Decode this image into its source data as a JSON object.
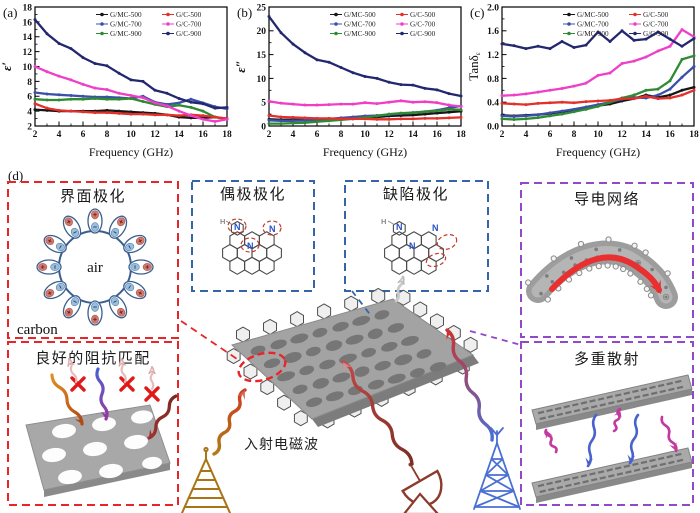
{
  "figure": {
    "panel_labels": {
      "a": "(a)",
      "b": "(b)",
      "c": "(c)",
      "d": "(d)"
    }
  },
  "chart_data": [
    {
      "type": "line",
      "panel_label": "(a)",
      "ylabel": "ε′",
      "ylabel_italic": true,
      "xlabel": "Frequency (GHz)",
      "xlim": [
        2,
        18
      ],
      "ylim": [
        2,
        18
      ],
      "xticks": [
        2,
        4,
        6,
        8,
        10,
        12,
        14,
        16,
        18
      ],
      "yticks": [
        2,
        4,
        6,
        8,
        10,
        12,
        14,
        16,
        18
      ],
      "xtick_labels": [
        "2",
        "4",
        "6",
        "8",
        "10",
        "12",
        "14",
        "16",
        "18"
      ],
      "ytick_labels": [
        "2",
        "4",
        "6",
        "8",
        "10",
        "12",
        "14",
        "16",
        "18"
      ],
      "legend_position": "top-right",
      "grid": false,
      "x": [
        2,
        3,
        4,
        5,
        6,
        7,
        8,
        9,
        10,
        11,
        12,
        13,
        14,
        15,
        16,
        17,
        18
      ],
      "series": [
        {
          "name": "G/MC-500",
          "color": "#161616",
          "values": [
            4.2,
            4.1,
            4.0,
            4.0,
            4.0,
            4.0,
            4.1,
            4.0,
            3.9,
            3.8,
            3.7,
            3.5,
            3.2,
            3.1,
            3.1,
            3.2,
            3.0
          ]
        },
        {
          "name": "G/MC-700",
          "color": "#3b50a8",
          "values": [
            6.5,
            6.3,
            6.2,
            6.1,
            6.0,
            5.9,
            5.9,
            5.8,
            5.7,
            6.0,
            5.2,
            4.9,
            5.1,
            5.6,
            5.1,
            4.6,
            4.3
          ]
        },
        {
          "name": "G/MC-900",
          "color": "#2e8b33",
          "values": [
            5.6,
            5.5,
            5.5,
            5.6,
            5.6,
            5.7,
            5.6,
            5.6,
            5.7,
            5.3,
            4.9,
            4.6,
            4.8,
            4.5,
            4.0,
            3.2,
            2.9
          ]
        },
        {
          "name": "G/C-500",
          "color": "#e2312a",
          "values": [
            5.0,
            4.4,
            4.1,
            4.0,
            3.9,
            3.8,
            3.8,
            3.7,
            3.6,
            3.6,
            3.5,
            3.5,
            3.4,
            3.5,
            3.4,
            3.2,
            3.0
          ]
        },
        {
          "name": "G/C-700",
          "color": "#ee3fc6",
          "values": [
            10.0,
            9.3,
            8.7,
            8.2,
            7.6,
            7.1,
            6.9,
            6.4,
            6.1,
            5.8,
            5.1,
            4.7,
            4.0,
            3.4,
            2.9,
            2.6,
            2.9
          ]
        },
        {
          "name": "G/C-900",
          "color": "#23276e",
          "values": [
            16.3,
            14.4,
            13.1,
            12.4,
            11.2,
            10.4,
            10.1,
            9.1,
            8.2,
            8.0,
            6.8,
            6.4,
            5.7,
            5.2,
            5.0,
            4.4,
            4.5
          ]
        }
      ]
    },
    {
      "type": "line",
      "panel_label": "(b)",
      "ylabel": "ε″",
      "ylabel_italic": true,
      "xlabel": "Frequency (GHz)",
      "xlim": [
        2,
        18
      ],
      "ylim": [
        0,
        25
      ],
      "xticks": [
        2,
        4,
        6,
        8,
        10,
        12,
        14,
        16,
        18
      ],
      "yticks": [
        0,
        5,
        10,
        15,
        20,
        25
      ],
      "xtick_labels": [
        "2",
        "4",
        "6",
        "8",
        "10",
        "12",
        "14",
        "16",
        "18"
      ],
      "ytick_labels": [
        "0",
        "5",
        "10",
        "15",
        "20",
        "25"
      ],
      "legend_position": "top-right",
      "grid": false,
      "x": [
        2,
        3,
        4,
        5,
        6,
        7,
        8,
        9,
        10,
        11,
        12,
        13,
        14,
        15,
        16,
        17,
        18
      ],
      "series": [
        {
          "name": "G/MC-500",
          "color": "#161616",
          "values": [
            1.4,
            1.3,
            1.3,
            1.3,
            1.4,
            1.5,
            1.6,
            1.7,
            1.8,
            1.9,
            2.1,
            2.2,
            2.3,
            2.5,
            2.7,
            2.9,
            3.1
          ]
        },
        {
          "name": "G/MC-700",
          "color": "#3b50a8",
          "values": [
            1.2,
            1.1,
            1.1,
            1.2,
            1.3,
            1.5,
            1.7,
            1.9,
            2.1,
            2.2,
            2.4,
            2.6,
            2.8,
            3.0,
            3.3,
            3.8,
            4.2
          ]
        },
        {
          "name": "G/MC-900",
          "color": "#2e8b33",
          "values": [
            0.5,
            0.5,
            0.6,
            0.7,
            0.9,
            1.1,
            1.3,
            1.5,
            1.8,
            2.1,
            2.5,
            2.7,
            2.8,
            3.0,
            3.2,
            3.5,
            3.4
          ]
        },
        {
          "name": "G/C-500",
          "color": "#e2312a",
          "values": [
            2.2,
            1.9,
            1.8,
            1.7,
            1.6,
            1.6,
            1.5,
            1.5,
            1.5,
            1.4,
            1.4,
            1.5,
            1.5,
            1.6,
            1.6,
            1.7,
            1.8
          ]
        },
        {
          "name": "G/C-700",
          "color": "#ee3fc6",
          "values": [
            5.2,
            4.8,
            4.6,
            4.4,
            4.4,
            4.5,
            4.6,
            4.6,
            4.9,
            4.7,
            5.0,
            5.3,
            5.0,
            5.1,
            4.9,
            4.4,
            4.1
          ]
        },
        {
          "name": "G/C-900",
          "color": "#23276e",
          "values": [
            23.0,
            19.6,
            17.2,
            15.4,
            13.9,
            13.4,
            12.3,
            11.2,
            10.4,
            10.0,
            9.2,
            8.7,
            8.6,
            7.9,
            7.6,
            6.8,
            6.3
          ]
        }
      ]
    },
    {
      "type": "line",
      "panel_label": "(c)",
      "ylabel": "Tanδ",
      "ylabel_sub": "ε",
      "ylabel_italic": false,
      "xlabel": "Frequency (GHz)",
      "xlim": [
        2,
        18
      ],
      "ylim": [
        0,
        2.0
      ],
      "xticks": [
        2,
        4,
        6,
        8,
        10,
        12,
        14,
        16,
        18
      ],
      "yticks": [
        0,
        0.4,
        0.8,
        1.2,
        1.6,
        2.0
      ],
      "xtick_labels": [
        "2",
        "4",
        "6",
        "8",
        "10",
        "12",
        "14",
        "16",
        "18"
      ],
      "ytick_labels": [
        "0.0",
        "0.4",
        "0.8",
        "1.2",
        "1.6",
        "2.0"
      ],
      "legend_position": "top-right",
      "grid": false,
      "x": [
        2,
        3,
        4,
        5,
        6,
        7,
        8,
        9,
        10,
        11,
        12,
        13,
        14,
        15,
        16,
        17,
        18
      ],
      "series": [
        {
          "name": "G/MC-500",
          "color": "#161616",
          "values": [
            0.18,
            0.17,
            0.18,
            0.19,
            0.21,
            0.24,
            0.27,
            0.3,
            0.34,
            0.37,
            0.42,
            0.46,
            0.52,
            0.48,
            0.52,
            0.6,
            0.65
          ]
        },
        {
          "name": "G/MC-700",
          "color": "#3b50a8",
          "values": [
            0.17,
            0.16,
            0.17,
            0.19,
            0.22,
            0.25,
            0.28,
            0.32,
            0.36,
            0.4,
            0.45,
            0.48,
            0.47,
            0.52,
            0.62,
            0.82,
            1.0
          ]
        },
        {
          "name": "G/MC-900",
          "color": "#2e8b33",
          "values": [
            0.12,
            0.11,
            0.12,
            0.14,
            0.17,
            0.2,
            0.24,
            0.28,
            0.33,
            0.4,
            0.47,
            0.52,
            0.6,
            0.62,
            0.76,
            1.12,
            1.18
          ]
        },
        {
          "name": "G/C-500",
          "color": "#e2312a",
          "values": [
            0.38,
            0.37,
            0.36,
            0.38,
            0.39,
            0.4,
            0.39,
            0.41,
            0.42,
            0.43,
            0.46,
            0.46,
            0.5,
            0.46,
            0.47,
            0.52,
            0.6
          ]
        },
        {
          "name": "G/C-700",
          "color": "#ee3fc6",
          "values": [
            0.51,
            0.52,
            0.54,
            0.57,
            0.6,
            0.63,
            0.67,
            0.72,
            0.85,
            0.89,
            1.05,
            1.09,
            1.16,
            1.26,
            1.34,
            1.62,
            1.5
          ]
        },
        {
          "name": "G/C-900",
          "color": "#23276e",
          "values": [
            1.38,
            1.35,
            1.3,
            1.34,
            1.3,
            1.42,
            1.32,
            1.36,
            1.58,
            1.42,
            1.6,
            1.44,
            1.46,
            1.58,
            1.46,
            1.34,
            1.47
          ]
        }
      ]
    }
  ],
  "diagram": {
    "interface_box": {
      "title": "界面极化",
      "center_label": "air",
      "material_label": "carbon",
      "border_color": "#e8262a"
    },
    "impedance_box": {
      "title": "良好的阻抗匹配",
      "border_color": "#e8262a"
    },
    "dipole_box": {
      "title": "偶极极化",
      "h_label": "H",
      "atom_labels": [
        "N",
        "N",
        "N"
      ],
      "border_color": "#3565a8"
    },
    "defect_box": {
      "title": "缺陷极化",
      "h_label": "H",
      "atom_labels": [
        "N",
        "N",
        "N"
      ],
      "border_color": "#3565a8"
    },
    "network_box": {
      "title": "导电网络",
      "border_color": "#9049c8"
    },
    "scattering_box": {
      "title": "多重散射",
      "border_color": "#9049c8"
    },
    "incident_label": "入射电磁波",
    "colors": {
      "red_dash": "#e8262a",
      "blue_dash": "#3565a8",
      "purple_dash": "#9049c8",
      "sheet_gray": "#a3a3a3",
      "arrow_red": "#e83030",
      "wave_blue": "#4a62cc",
      "wave_magenta": "#c2399f"
    }
  }
}
